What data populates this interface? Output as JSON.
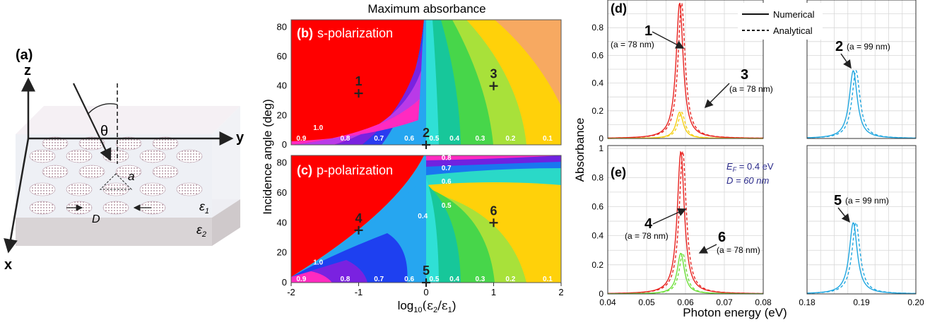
{
  "panel_a": {
    "label": "(a)",
    "axis_x": "x",
    "axis_y": "y",
    "axis_z": "z",
    "theta": "θ",
    "a_label": "a",
    "d_label": "D",
    "eps1_sym": "ε",
    "eps1_sub": "1",
    "eps2_sym": "ε",
    "eps2_sub": "2"
  },
  "panel_bc": {
    "title": "Maximum absorbance",
    "ylabel": "Incidence angle (deg)",
    "xlabel_prefix": "log",
    "xlabel_sub": "10",
    "xlabel_rest": "(ε",
    "xlabel_sub2": "2",
    "xlabel_mid": "/ε",
    "xlabel_sub3": "1",
    "xlabel_end": ")",
    "b_label": "(b)",
    "b_text": "s-polarization",
    "c_label": "(c)",
    "c_text": "p-polarization",
    "x_ticks": [
      "-2",
      "-1",
      "0",
      "1",
      "2"
    ],
    "y_ticks": [
      "0",
      "20",
      "40",
      "60",
      "80"
    ],
    "b_contours": [
      "1.0",
      "0.9",
      "0.8",
      "0.7",
      "0.6",
      "0.5",
      "0.4",
      "0.3",
      "0.2",
      "0.1"
    ],
    "c_contours": [
      "1.0",
      "0.9",
      "0.8",
      "0.7",
      "0.6",
      "0.5",
      "0.4",
      "0.3",
      "0.2",
      "0.1",
      "0.8",
      "0.7",
      "0.6",
      "0.5",
      "0.4"
    ],
    "markers_b": [
      "1",
      "2",
      "3"
    ],
    "markers_c": [
      "4",
      "5",
      "6"
    ]
  },
  "panel_de": {
    "ylabel": "Absorbance",
    "xlabel": "Photon energy (eV)",
    "d_label": "(d)",
    "e_label": "(e)",
    "legend_numerical": "Numerical",
    "legend_analytical": "Analytical",
    "y_ticks_d": [
      "0",
      "0.2",
      "0.4",
      "0.6",
      "0.8"
    ],
    "y_ticks_e": [
      "0",
      "0.2",
      "0.4",
      "0.6",
      "0.8",
      "1"
    ],
    "x_ticks_left": [
      "0.04",
      "0.05",
      "0.06",
      "0.07",
      "0.08"
    ],
    "x_ticks_right": [
      "0.18",
      "0.19",
      "0.20"
    ],
    "ann_1": "1",
    "ann_1_sub": "(a = 78 nm)",
    "ann_2": "2",
    "ann_2_sub": "(a = 99 nm)",
    "ann_3": "3",
    "ann_3_sub": "(a = 78 nm)",
    "ann_4": "4",
    "ann_4_sub": "(a = 78 nm)",
    "ann_5": "5",
    "ann_5_sub": "(a = 99 nm)",
    "ann_6": "6",
    "ann_6_sub": "(a = 78 nm)",
    "ef_text": "E",
    "ef_sub": "F",
    "ef_rest": " = 0.4 eV",
    "d_text": "D = 60 nm",
    "colors": {
      "red": "#e8221f",
      "yellow": "#f5cf12",
      "cyan": "#1fa6e0",
      "green": "#6ee03a",
      "navy": "#2a2a8a"
    }
  },
  "chart_data": [
    {
      "type": "heatmap",
      "title": "Maximum absorbance",
      "subtitle": "(b) s-polarization",
      "xlabel": "log10(ε2/ε1)",
      "ylabel": "Incidence angle (deg)",
      "xlim": [
        -2,
        2
      ],
      "ylim": [
        0,
        85
      ],
      "contour_levels": [
        1.0,
        0.9,
        0.8,
        0.7,
        0.6,
        0.5,
        0.4,
        0.3,
        0.2,
        0.1
      ],
      "markers": [
        {
          "label": "1",
          "x": -1,
          "y": 35
        },
        {
          "label": "2",
          "x": 0,
          "y": 0
        },
        {
          "label": "3",
          "x": 1,
          "y": 40
        }
      ]
    },
    {
      "type": "heatmap",
      "subtitle": "(c) p-polarization",
      "xlabel": "log10(ε2/ε1)",
      "ylabel": "Incidence angle (deg)",
      "xlim": [
        -2,
        2
      ],
      "ylim": [
        0,
        85
      ],
      "contour_levels": [
        1.0,
        0.9,
        0.8,
        0.7,
        0.6,
        0.5,
        0.4,
        0.3,
        0.2,
        0.1
      ],
      "markers": [
        {
          "label": "4",
          "x": -1,
          "y": 35
        },
        {
          "label": "5",
          "x": 0,
          "y": 0
        },
        {
          "label": "6",
          "x": 1,
          "y": 40
        }
      ]
    },
    {
      "type": "line",
      "subtitle": "(d)",
      "xlabel": "Photon energy (eV)",
      "ylabel": "Absorbance",
      "xlim": [
        [
          0.04,
          0.08
        ],
        [
          0.18,
          0.2
        ]
      ],
      "ylim": [
        0,
        1
      ],
      "series": [
        {
          "name": "1",
          "color": "#e8221f",
          "center": 0.0585,
          "peak": 0.98
        },
        {
          "name": "3",
          "color": "#f5cf12",
          "center": 0.0585,
          "peak": 0.19
        },
        {
          "name": "2",
          "color": "#1fa6e0",
          "center": 0.1885,
          "peak": 0.49
        }
      ]
    },
    {
      "type": "line",
      "subtitle": "(e)",
      "xlabel": "Photon energy (eV)",
      "ylabel": "Absorbance",
      "xlim": [
        [
          0.04,
          0.08
        ],
        [
          0.18,
          0.2
        ]
      ],
      "ylim": [
        0,
        1
      ],
      "series": [
        {
          "name": "4",
          "color": "#e8221f",
          "center": 0.0588,
          "peak": 0.98
        },
        {
          "name": "6",
          "color": "#6ee03a",
          "center": 0.0588,
          "peak": 0.28
        },
        {
          "name": "5",
          "color": "#1fa6e0",
          "center": 0.1885,
          "peak": 0.49
        }
      ]
    }
  ]
}
